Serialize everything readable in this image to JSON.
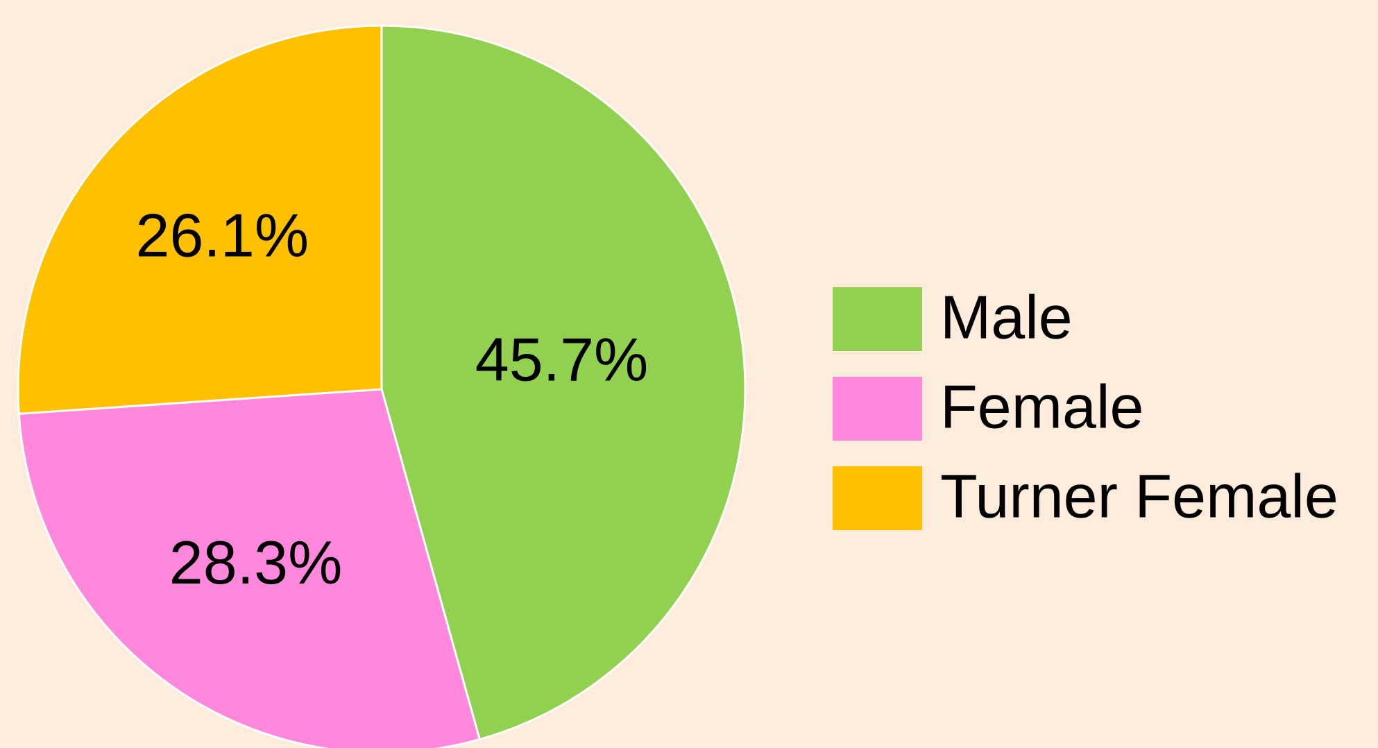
{
  "chart_data": {
    "type": "pie",
    "categories": [
      "Male",
      "Female",
      "Turner Female"
    ],
    "values": [
      45.7,
      28.3,
      26.1
    ],
    "value_labels": [
      "45.7%",
      "28.3%",
      "26.1%"
    ],
    "colors": [
      "#92d050",
      "#ff88dd",
      "#ffc000"
    ],
    "legend": "right"
  }
}
